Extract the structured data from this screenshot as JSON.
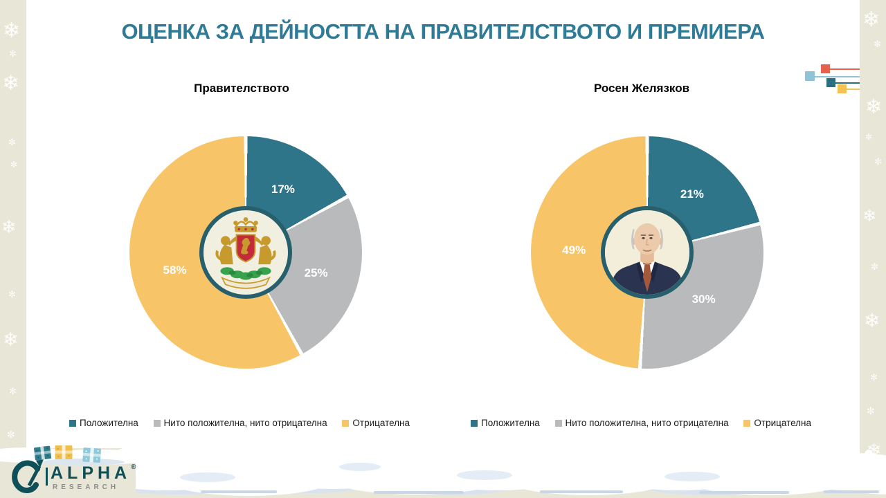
{
  "page": {
    "title": "ОЦЕНКА ЗА ДЕЙНОСТТА НА ПРАВИТЕЛСТВОТО И ПРЕМИЕРА"
  },
  "icons": {
    "snowflake": "❄",
    "sparkle": "✼"
  },
  "colors": {
    "positive": "#2F7589",
    "neutral": "#B9BABC",
    "negative": "#F7C568",
    "title": "#2E7B98",
    "beige": "#E8E6D7",
    "accent_red": "#E8614D",
    "accent_lightblue": "#8FC4D6",
    "accent_teal": "#2A6F80",
    "accent_yellow": "#F3C255"
  },
  "chart_data": [
    {
      "type": "pie",
      "title": "Правителството",
      "center_icon": "bulgaria-coat-of-arms",
      "categories": [
        "Положителна",
        "Нито положителна, нито отрицателна",
        "Отрицателна"
      ],
      "values": [
        17,
        25,
        58
      ],
      "labels": [
        "17%",
        "25%",
        "58%"
      ],
      "colors": [
        "#2F7589",
        "#B9BABC",
        "#F7C568"
      ],
      "start_angle_deg": 0,
      "direction": "clockwise"
    },
    {
      "type": "pie",
      "title": "Росен Желязков",
      "center_icon": "rosen-zhelyazkov-portrait",
      "categories": [
        "Положителна",
        "Нито положителна, нито отрицателна",
        "Отрицателна"
      ],
      "values": [
        21,
        30,
        49
      ],
      "labels": [
        "21%",
        "30%",
        "49%"
      ],
      "colors": [
        "#2F7589",
        "#B9BABC",
        "#F7C568"
      ],
      "start_angle_deg": 0,
      "direction": "clockwise"
    }
  ],
  "legend": {
    "items": [
      {
        "label": "Положителна",
        "color": "#2F7589"
      },
      {
        "label": "Нито положителна, нито отрицателна",
        "color": "#B9BABC"
      },
      {
        "label": "Отрицателна",
        "color": "#F7C568"
      }
    ]
  },
  "logo": {
    "brand": "ALPHA",
    "registered": "®",
    "sub_brand": "RESEARCH"
  }
}
